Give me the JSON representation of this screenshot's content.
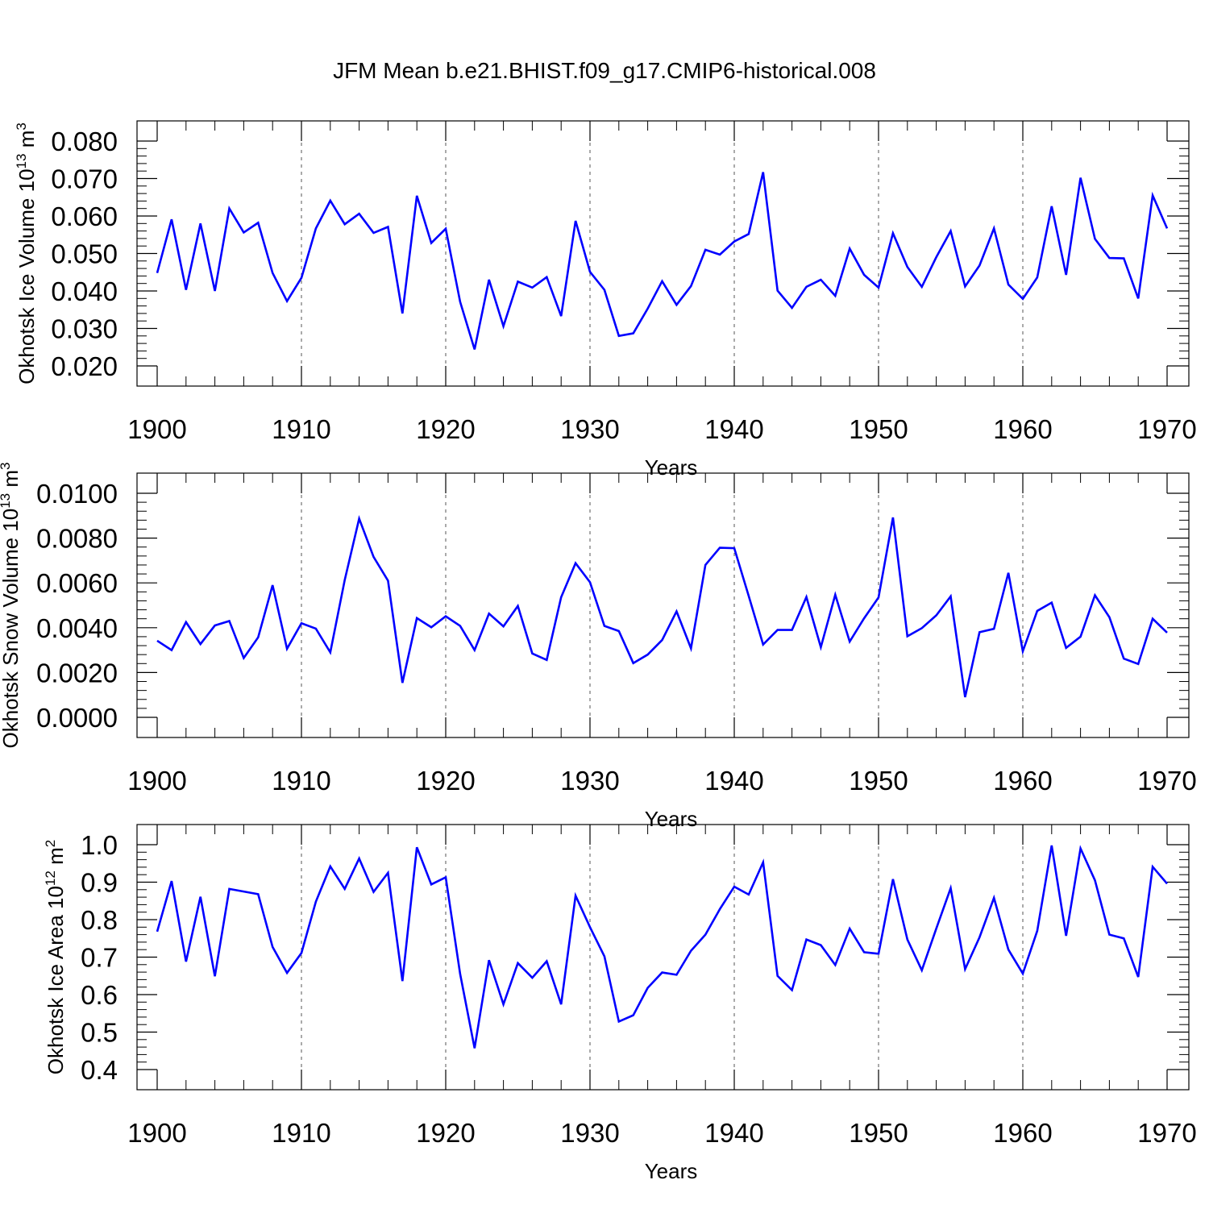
{
  "title": "JFM Mean b.e21.BHIST.f09_g17.CMIP6-historical.008",
  "style": {
    "line_color": "#0000ff",
    "grid_color": "#000000"
  },
  "chart_data": [
    {
      "type": "line",
      "ylabel": "Okhotsk Ice Volume 10",
      "ylabel_exp": "13",
      "ylabel_unit": " m",
      "ylabel_unit_exp": "3",
      "xlabel": "Years",
      "xlim": [
        1900,
        1970
      ],
      "ylim": [
        0.02,
        0.08
      ],
      "yticks": [
        0.02,
        0.03,
        0.04,
        0.05,
        0.06,
        0.07,
        0.08
      ],
      "ytick_labels": [
        "0.020",
        "0.030",
        "0.040",
        "0.050",
        "0.060",
        "0.070",
        "0.080"
      ],
      "xticks": [
        1900,
        1910,
        1920,
        1930,
        1940,
        1950,
        1960,
        1970
      ],
      "xtick_labels": [
        "1900",
        "1910",
        "1920",
        "1930",
        "1940",
        "1950",
        "1960",
        "1970"
      ],
      "grid": "vertical dashed at decades",
      "x_start": 1900,
      "series": [
        {
          "values": [
            0.0448,
            0.0591,
            0.0403,
            0.058,
            0.04,
            0.062,
            0.0556,
            0.0582,
            0.0448,
            0.0373,
            0.0435,
            0.0567,
            0.0641,
            0.0578,
            0.0606,
            0.0555,
            0.0571,
            0.034,
            0.0654,
            0.0528,
            0.0566,
            0.0371,
            0.0244,
            0.043,
            0.0306,
            0.0425,
            0.0409,
            0.0437,
            0.0333,
            0.0587,
            0.0451,
            0.0403,
            0.028,
            0.0287,
            0.0353,
            0.0426,
            0.0363,
            0.0413,
            0.051,
            0.0497,
            0.0532,
            0.0552,
            0.0717,
            0.0401,
            0.0355,
            0.0411,
            0.043,
            0.0387,
            0.0513,
            0.0443,
            0.0409,
            0.0554,
            0.0464,
            0.0411,
            0.049,
            0.056,
            0.0412,
            0.0468,
            0.0567,
            0.0417,
            0.0379,
            0.0436,
            0.0626,
            0.0443,
            0.0702,
            0.0539,
            0.0488,
            0.0487,
            0.038,
            0.0655,
            0.0567
          ]
        }
      ]
    },
    {
      "type": "line",
      "ylabel": "Okhotsk Snow Volume 10",
      "ylabel_exp": "13",
      "ylabel_unit": " m",
      "ylabel_unit_exp": "3",
      "xlabel": "Years",
      "xlim": [
        1900,
        1970
      ],
      "ylim": [
        0.0,
        0.01
      ],
      "yticks": [
        0.0,
        0.002,
        0.004,
        0.006,
        0.008,
        0.01
      ],
      "ytick_labels": [
        "0.0000",
        "0.0020",
        "0.0040",
        "0.0060",
        "0.0080",
        "0.0100"
      ],
      "xticks": [
        1900,
        1910,
        1920,
        1930,
        1940,
        1950,
        1960,
        1970
      ],
      "xtick_labels": [
        "1900",
        "1910",
        "1920",
        "1930",
        "1940",
        "1950",
        "1960",
        "1970"
      ],
      "grid": "vertical dashed at decades",
      "x_start": 1900,
      "series": [
        {
          "values": [
            0.00342,
            0.003,
            0.00425,
            0.00327,
            0.0041,
            0.0043,
            0.00265,
            0.00357,
            0.0059,
            0.00306,
            0.0042,
            0.00396,
            0.0029,
            0.00613,
            0.00887,
            0.00716,
            0.0061,
            0.00154,
            0.00443,
            0.00402,
            0.00451,
            0.00408,
            0.003,
            0.00463,
            0.00406,
            0.00497,
            0.00285,
            0.00256,
            0.00536,
            0.00688,
            0.00603,
            0.00408,
            0.00385,
            0.00242,
            0.0028,
            0.00345,
            0.00473,
            0.00308,
            0.0068,
            0.00757,
            0.00755,
            0.00542,
            0.00325,
            0.0039,
            0.0039,
            0.00537,
            0.00313,
            0.00547,
            0.00338,
            0.00442,
            0.00535,
            0.00892,
            0.00362,
            0.00398,
            0.00455,
            0.0054,
            0.0009,
            0.0038,
            0.00395,
            0.00645,
            0.00295,
            0.00475,
            0.00512,
            0.0031,
            0.0036,
            0.00545,
            0.00447,
            0.00262,
            0.00238,
            0.0044,
            0.00378
          ]
        }
      ]
    },
    {
      "type": "line",
      "ylabel": "Okhotsk Ice Area 10",
      "ylabel_exp": "12",
      "ylabel_unit": " m",
      "ylabel_unit_exp": "2",
      "xlabel": "Years",
      "xlim": [
        1900,
        1970
      ],
      "ylim": [
        0.4,
        1.0
      ],
      "yticks": [
        0.4,
        0.5,
        0.6,
        0.7,
        0.8,
        0.9,
        1.0
      ],
      "ytick_labels": [
        "0.4",
        "0.5",
        "0.6",
        "0.7",
        "0.8",
        "0.9",
        "1.0"
      ],
      "xticks": [
        1900,
        1910,
        1920,
        1930,
        1940,
        1950,
        1960,
        1970
      ],
      "xtick_labels": [
        "1900",
        "1910",
        "1920",
        "1930",
        "1940",
        "1950",
        "1960",
        "1970"
      ],
      "grid": "vertical dashed at decades",
      "x_start": 1900,
      "series": [
        {
          "values": [
            0.768,
            0.903,
            0.688,
            0.861,
            0.649,
            0.882,
            0.875,
            0.868,
            0.727,
            0.658,
            0.711,
            0.848,
            0.942,
            0.882,
            0.963,
            0.874,
            0.925,
            0.636,
            0.993,
            0.894,
            0.913,
            0.655,
            0.457,
            0.692,
            0.574,
            0.684,
            0.645,
            0.689,
            0.574,
            0.864,
            0.78,
            0.702,
            0.528,
            0.545,
            0.618,
            0.659,
            0.653,
            0.717,
            0.76,
            0.828,
            0.888,
            0.867,
            0.953,
            0.65,
            0.612,
            0.747,
            0.732,
            0.679,
            0.776,
            0.713,
            0.709,
            0.908,
            0.747,
            0.665,
            0.776,
            0.884,
            0.668,
            0.753,
            0.858,
            0.72,
            0.656,
            0.77,
            0.998,
            0.757,
            0.99,
            0.905,
            0.76,
            0.75,
            0.647,
            0.941,
            0.896
          ]
        }
      ]
    }
  ]
}
